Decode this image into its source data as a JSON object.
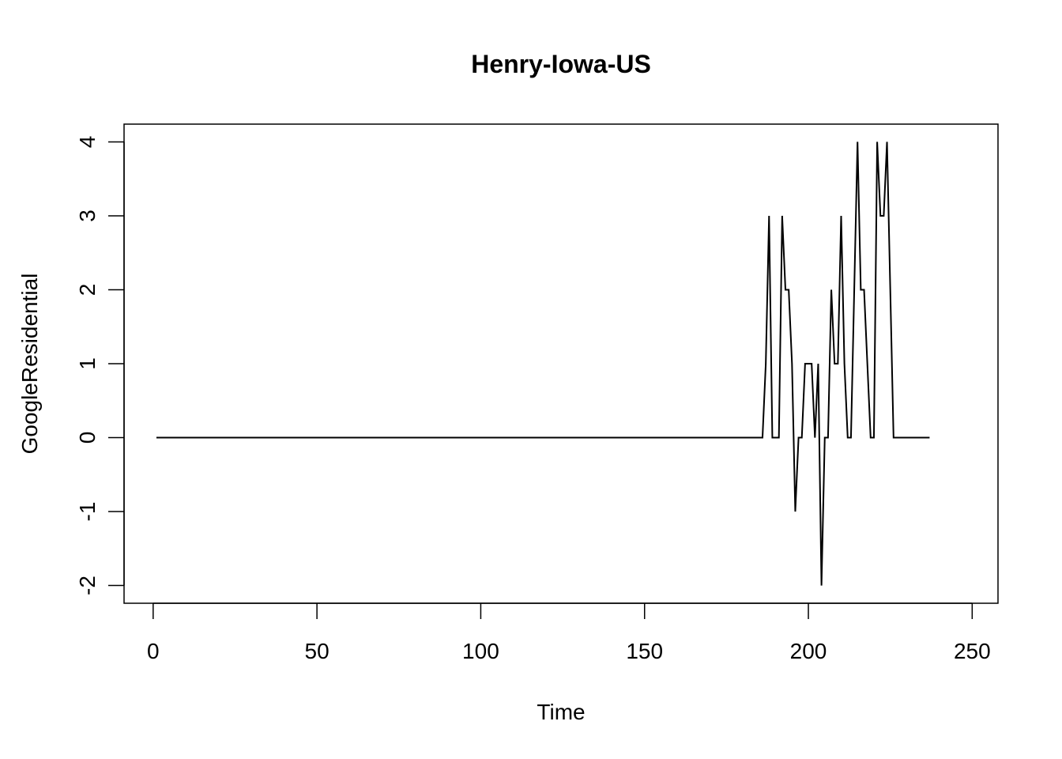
{
  "chart_data": {
    "type": "line",
    "title": "Henry-Iowa-US",
    "xlabel": "Time",
    "ylabel": "GoogleResidential",
    "xlim": [
      1,
      248
    ],
    "ylim": [
      -2,
      4
    ],
    "x_ticks": [
      0,
      50,
      100,
      150,
      200,
      250
    ],
    "y_ticks": [
      -2,
      -1,
      0,
      1,
      2,
      3,
      4
    ],
    "x_tick_labels": [
      "0",
      "50",
      "100",
      "150",
      "200",
      "250"
    ],
    "y_tick_labels": [
      "-2",
      "-1",
      "0",
      "1",
      "2",
      "3",
      "4"
    ],
    "grid": false,
    "legend": "none",
    "series": [
      {
        "x_start": 1,
        "x_step": 1,
        "values": [
          0,
          0,
          0,
          0,
          0,
          0,
          0,
          0,
          0,
          0,
          0,
          0,
          0,
          0,
          0,
          0,
          0,
          0,
          0,
          0,
          0,
          0,
          0,
          0,
          0,
          0,
          0,
          0,
          0,
          0,
          0,
          0,
          0,
          0,
          0,
          0,
          0,
          0,
          0,
          0,
          0,
          0,
          0,
          0,
          0,
          0,
          0,
          0,
          0,
          0,
          0,
          0,
          0,
          0,
          0,
          0,
          0,
          0,
          0,
          0,
          0,
          0,
          0,
          0,
          0,
          0,
          0,
          0,
          0,
          0,
          0,
          0,
          0,
          0,
          0,
          0,
          0,
          0,
          0,
          0,
          0,
          0,
          0,
          0,
          0,
          0,
          0,
          0,
          0,
          0,
          0,
          0,
          0,
          0,
          0,
          0,
          0,
          0,
          0,
          0,
          0,
          0,
          0,
          0,
          0,
          0,
          0,
          0,
          0,
          0,
          0,
          0,
          0,
          0,
          0,
          0,
          0,
          0,
          0,
          0,
          0,
          0,
          0,
          0,
          0,
          0,
          0,
          0,
          0,
          0,
          0,
          0,
          0,
          0,
          0,
          0,
          0,
          0,
          0,
          0,
          0,
          0,
          0,
          0,
          0,
          0,
          0,
          0,
          0,
          0,
          0,
          0,
          0,
          0,
          0,
          0,
          0,
          0,
          0,
          0,
          0,
          0,
          0,
          0,
          0,
          0,
          0,
          0,
          0,
          0,
          0,
          0,
          0,
          0,
          0,
          0,
          0,
          0,
          0,
          0,
          0,
          0,
          0,
          0,
          0,
          0,
          1,
          3,
          0,
          0,
          0,
          3,
          2,
          2,
          1,
          -1,
          0,
          0,
          1,
          1,
          1,
          0,
          1,
          -2,
          0,
          0,
          2,
          1,
          1,
          3,
          1,
          0,
          0,
          2,
          4,
          2,
          2,
          1,
          0,
          0,
          4,
          3,
          3,
          4,
          2,
          0,
          0,
          0,
          0,
          0,
          0,
          0,
          0,
          0,
          0,
          0,
          0
        ]
      }
    ]
  }
}
